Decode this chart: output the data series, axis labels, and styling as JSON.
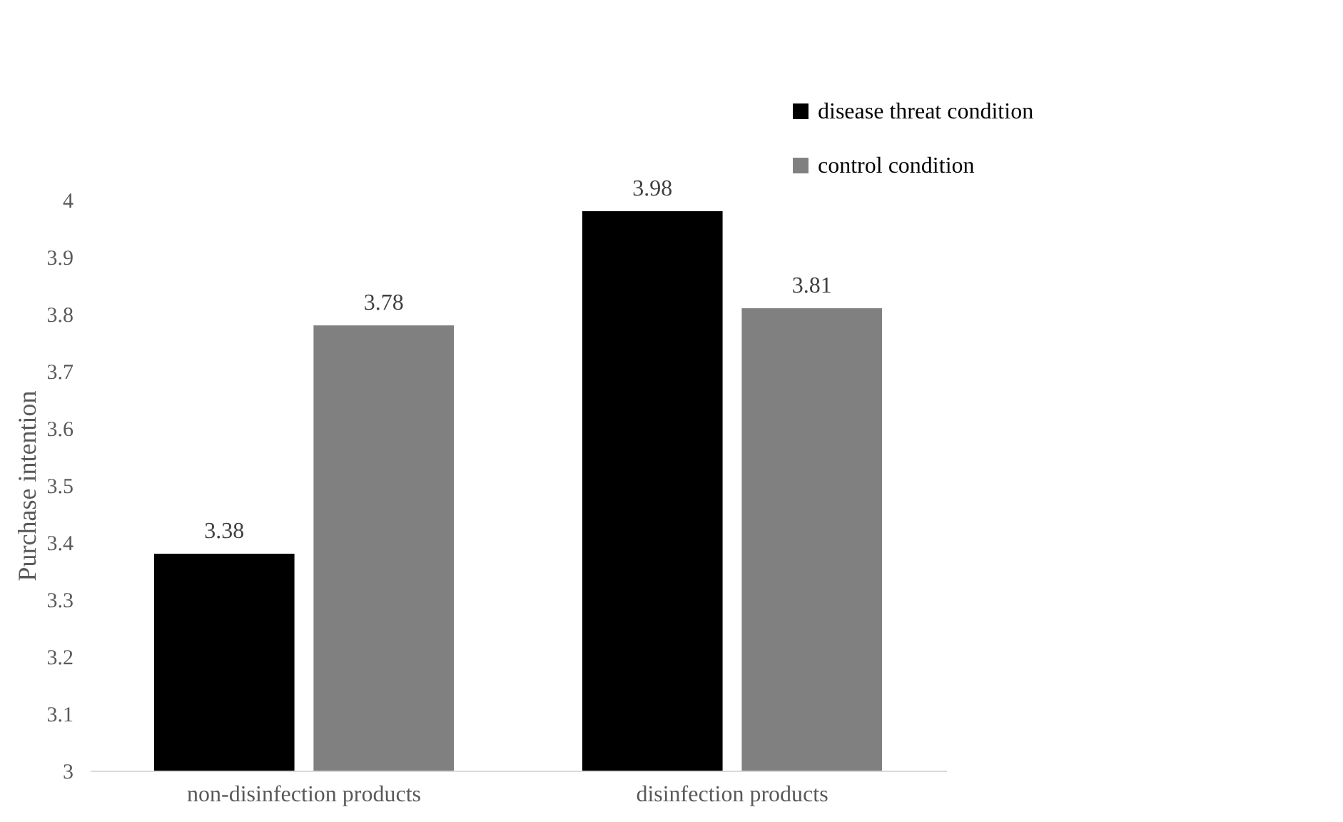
{
  "chart_data": {
    "type": "bar",
    "ylabel": "Purchase intention",
    "categories": [
      "non-disinfection products",
      "disinfection products"
    ],
    "series": [
      {
        "name": "disease threat condition",
        "color": "#000000",
        "values": [
          3.38,
          3.98
        ]
      },
      {
        "name": "control condition",
        "color": "#808080",
        "values": [
          3.78,
          3.81
        ]
      }
    ],
    "ylim": [
      3,
      4
    ],
    "yticks": [
      3,
      3.1,
      3.2,
      3.3,
      3.4,
      3.5,
      3.6,
      3.7,
      3.8,
      3.9,
      4
    ],
    "grid": false,
    "legend": "top right",
    "data_labels": true
  }
}
